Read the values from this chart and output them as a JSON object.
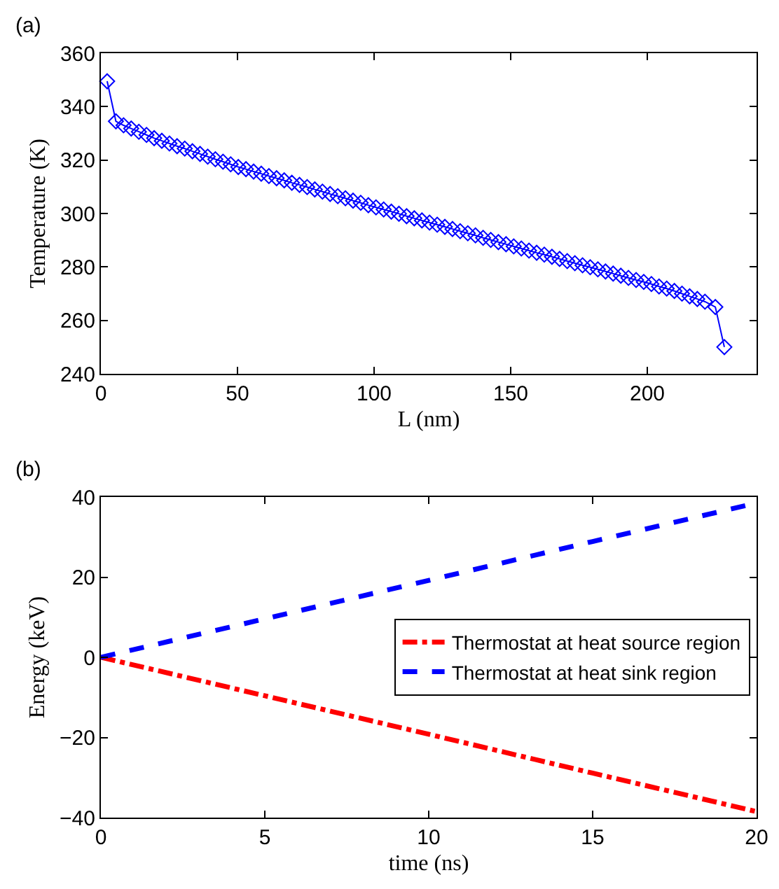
{
  "chart_data": [
    {
      "type": "line",
      "annotations": [
        "(a)"
      ],
      "xlabel": "L (nm)",
      "ylabel": "Temperature (K)",
      "xlim": [
        0,
        240
      ],
      "xticks": [
        0,
        50,
        100,
        150,
        200
      ],
      "ylim": [
        240,
        360
      ],
      "yticks": [
        240,
        260,
        280,
        300,
        320,
        340,
        360
      ],
      "grid": false,
      "legend": false,
      "marker": "diamond",
      "line_style": "solid",
      "series": [
        {
          "color": "#0000ff",
          "x": [
            2.3,
            5.5,
            8.3,
            11.1,
            13.9,
            16.7,
            19.5,
            22.3,
            25.1,
            27.9,
            30.7,
            33.5,
            36.3,
            39.1,
            41.9,
            44.7,
            47.5,
            50.3,
            53.1,
            55.9,
            58.7,
            61.5,
            64.3,
            67.1,
            69.9,
            72.7,
            75.5,
            78.3,
            81.1,
            83.9,
            86.7,
            89.5,
            92.3,
            95.1,
            97.9,
            100.7,
            103.5,
            106.3,
            109.1,
            111.9,
            114.7,
            117.5,
            120.3,
            123.1,
            125.9,
            128.7,
            131.5,
            134.3,
            137.1,
            139.9,
            142.7,
            145.5,
            148.3,
            151.1,
            153.9,
            156.7,
            159.5,
            162.3,
            165.1,
            167.9,
            170.7,
            173.5,
            176.3,
            179.1,
            181.9,
            184.7,
            187.5,
            190.3,
            193.1,
            195.9,
            198.7,
            201.5,
            204.3,
            207.1,
            209.9,
            212.7,
            215.5,
            218.3,
            221.1,
            224.9,
            228.2
          ],
          "values": [
            349.5,
            334.5,
            333,
            331.8,
            330.6,
            329.4,
            328.2,
            327.2,
            326.2,
            325.2,
            324.3,
            323.3,
            322.3,
            321.3,
            320.3,
            319.4,
            318.4,
            317.4,
            316.6,
            315.7,
            314.9,
            314,
            313.2,
            312.4,
            311.5,
            310.7,
            309.9,
            309,
            308.2,
            307.3,
            306.5,
            305.7,
            304.8,
            304,
            303.1,
            302.3,
            301.5,
            300.7,
            299.9,
            299,
            298.2,
            297.4,
            296.6,
            295.8,
            295,
            294.2,
            293.4,
            292.6,
            291.8,
            290.9,
            290.1,
            289.3,
            288.5,
            287.7,
            286.9,
            286.1,
            285.3,
            284.6,
            283.8,
            283,
            282.2,
            281.4,
            280.6,
            279.9,
            279.1,
            278.3,
            277.5,
            276.7,
            275.9,
            275.1,
            274.4,
            273.6,
            272.7,
            271.9,
            271,
            270,
            269,
            268,
            267,
            265,
            250
          ]
        }
      ]
    },
    {
      "type": "line",
      "annotations": [
        "(b)"
      ],
      "xlabel": "time (ns)",
      "ylabel": "Energy (keV)",
      "xlim": [
        0,
        20
      ],
      "xticks": [
        0,
        5,
        10,
        15,
        20
      ],
      "ylim": [
        -40,
        40
      ],
      "yticks": [
        {
          "value": -40,
          "label": "−40"
        },
        {
          "value": -20,
          "label": "−20"
        },
        0,
        20,
        40
      ],
      "grid": false,
      "legend": "right",
      "marker": "none",
      "x": [
        0,
        5,
        10,
        15,
        20
      ],
      "series": [
        {
          "name": "Thermostat at heat source region",
          "color": "#ff0000",
          "line_style": "dashdot",
          "values": [
            0,
            -9.6,
            -19.2,
            -28.9,
            -38.5
          ]
        },
        {
          "name": "Thermostat at heat sink region",
          "color": "#0000ff",
          "line_style": "dashed",
          "values": [
            0,
            9.6,
            19.2,
            28.9,
            38.5
          ]
        }
      ]
    }
  ]
}
